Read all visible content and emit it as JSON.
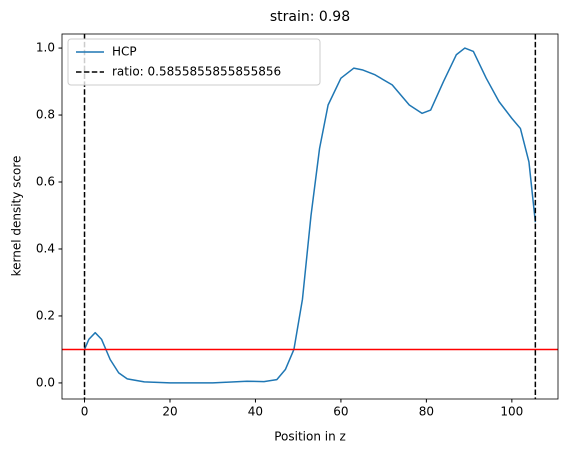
{
  "chart_data": {
    "type": "line",
    "title": "strain: 0.98",
    "x_label": "Position in z",
    "y_label": "kernel density score",
    "series": [
      {
        "name": "HCP",
        "color": "#1f77b4",
        "x": [
          0,
          1,
          2.5,
          4,
          6,
          8,
          10,
          14,
          20,
          30,
          38,
          42,
          45,
          47,
          49,
          51,
          53,
          55,
          57,
          60,
          63,
          65,
          68,
          72,
          76,
          79,
          81,
          84,
          87,
          89,
          91,
          94,
          97,
          100,
          102,
          104,
          105.5
        ],
        "values": [
          0.1,
          0.13,
          0.15,
          0.13,
          0.07,
          0.03,
          0.012,
          0.003,
          0.0,
          0.0,
          0.005,
          0.004,
          0.01,
          0.04,
          0.1,
          0.25,
          0.5,
          0.7,
          0.83,
          0.91,
          0.94,
          0.935,
          0.92,
          0.89,
          0.83,
          0.805,
          0.815,
          0.9,
          0.98,
          1.0,
          0.99,
          0.91,
          0.84,
          0.79,
          0.76,
          0.66,
          0.48
        ]
      }
    ],
    "vlines": {
      "name": "ratio: 0.5855855855855856",
      "color": "#000000",
      "x": [
        0,
        105.5
      ]
    },
    "hline": {
      "color": "#ff0000",
      "y": 0.1
    },
    "xlim": [
      -5.27,
      110.8
    ],
    "ylim": [
      -0.048,
      1.042
    ],
    "xticks": [
      0,
      20,
      40,
      60,
      80,
      100
    ],
    "yticks": [
      {
        "value": 0,
        "label": "0.0"
      },
      0.2,
      0.4,
      0.6,
      0.8,
      {
        "value": 1,
        "label": "1.0"
      }
    ],
    "legend": "upper left"
  }
}
